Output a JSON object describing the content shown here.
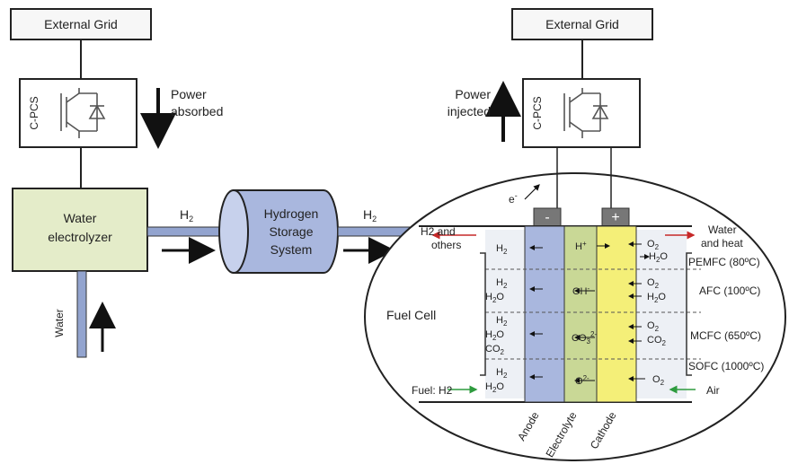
{
  "left": {
    "grid_label": "External Grid",
    "pcs_label": "C-PCS",
    "power_label_1": "Power",
    "power_label_2": "absorbed",
    "electrolyzer_line1": "Water",
    "electrolyzer_line2": "electrolyzer",
    "water_label": "Water",
    "h2_label": "H",
    "h2_sub": "2"
  },
  "storage": {
    "line1": "Hydrogen",
    "line2": "Storage",
    "line3": "System",
    "h2_label": "H",
    "h2_sub": "2"
  },
  "right": {
    "grid_label": "External Grid",
    "pcs_label": "C-PCS",
    "power_label_1": "Power",
    "power_label_2": "injected"
  },
  "fuel_cell": {
    "title": "Fuel Cell",
    "electron": "e",
    "minus": "-",
    "plus": "+",
    "h2_and_others_1": "H2 and",
    "h2_and_others_2": "others",
    "water_heat_1": "Water",
    "water_heat_2": "and heat",
    "fuel_label": "Fuel: H2",
    "air_label": "Air",
    "bottom_labels": [
      "Anode",
      "Electrolyte",
      "Cathode"
    ],
    "rows": [
      {
        "name": "PEMFC (80ºC)",
        "anode": [
          "H2"
        ],
        "ion": "H+",
        "cathode": [
          "O2",
          "H2O"
        ]
      },
      {
        "name": "AFC (100ºC)",
        "anode": [
          "H2",
          "H2O"
        ],
        "ion": "OH-",
        "cathode": [
          "O2",
          "H2O"
        ]
      },
      {
        "name": "MCFC (650ºC)",
        "anode": [
          "H2",
          "H2O",
          "CO2"
        ],
        "ion": "CO3 2-",
        "cathode": [
          "O2",
          "CO2"
        ]
      },
      {
        "name": "SOFC (1000ºC)",
        "anode": [
          "H2",
          "H2O"
        ],
        "ion": "O2-",
        "cathode": [
          "O2"
        ]
      }
    ]
  }
}
